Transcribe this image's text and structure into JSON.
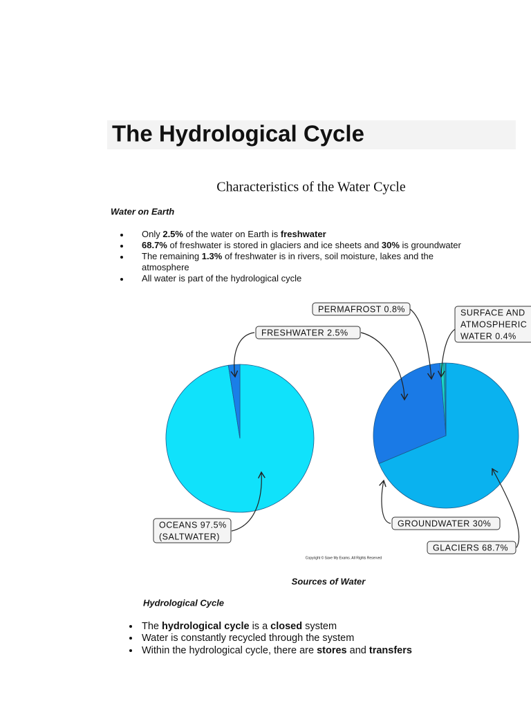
{
  "header": {
    "title": "The Hydrological Cycle",
    "subtitle": "Characteristics of the Water Cycle"
  },
  "sections": [
    {
      "heading": "Water on Earth",
      "bullets": [
        [
          "Only ",
          "2.5%",
          " of the water on Earth is ",
          "freshwater"
        ],
        [
          "",
          "68.7%",
          " of freshwater is stored in glaciers and ice sheets and ",
          "30%",
          " is groundwater"
        ],
        [
          "The remaining ",
          "1.3%",
          " of freshwater is in rivers, soil moisture, lakes and the"
        ],
        [
          "atmosphere"
        ],
        [
          "All water is part of the hydrological cycle"
        ]
      ]
    },
    {
      "heading": "Hydrological Cycle",
      "bullets": [
        [
          "The ",
          "hydrological cycle",
          " is a ",
          "closed",
          " system"
        ],
        [
          "Water is constantly recycled through the system"
        ],
        [
          "Within the hydrological cycle, there are ",
          "stores",
          " and ",
          "transfers"
        ]
      ]
    }
  ],
  "figure": {
    "pies": [
      {
        "slices": [
          {
            "label": [
              "OCEANS 97.5%",
              "(SALTWATER)"
            ],
            "value": 97.5,
            "color": "#10e2fb"
          },
          {
            "label": [
              "FRESHWATER 2.5%"
            ],
            "value": 2.5,
            "color": "#1a7fe8"
          }
        ]
      },
      {
        "slices": [
          {
            "label": [
              "GLACIERS 68.7%"
            ],
            "value": 68.7,
            "color": "#0ab2ef"
          },
          {
            "label": [
              "GROUNDWATER 30%"
            ],
            "value": 30,
            "color": "#1a7ae6"
          },
          {
            "label": [
              "PERMAFROST 0.8%"
            ],
            "value": 0.8,
            "color": "#19dcc6"
          },
          {
            "label": [
              "SURFACE AND",
              "ATMOSPHERIC",
              "WATER 0.4%"
            ],
            "value": 0.4,
            "color": "#14c4b6"
          }
        ]
      }
    ],
    "copyright": "Copyright © Save My Exams. All Rights Reserved",
    "caption": "Sources of Water"
  }
}
